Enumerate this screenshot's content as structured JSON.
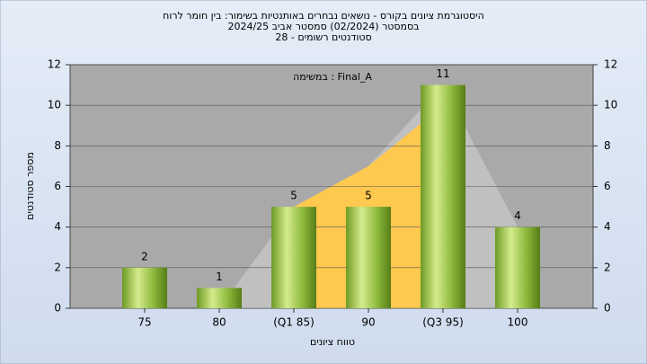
{
  "chart_data": {
    "type": "bar",
    "title": "היסטוגרמת ציונים בקורס - נושאים נבחרים באותנטיות בשימור: בין חומר לרוח",
    "subtitle": "בסמסטר  (02/2024)  סמסטר אביב 2024/25",
    "subtitle2": "סטודנטים רשומים - 28",
    "annotation": "במשימה : Final_A",
    "x_label": "טווח ציונים",
    "y_label": "מספר סטודנטים",
    "categories": [
      "75",
      "80",
      "(Q1 85)",
      "90",
      "(Q3 95)",
      "100"
    ],
    "values": [
      2,
      1,
      5,
      5,
      11,
      4
    ],
    "color": "#8cb83c",
    "areas": [
      {
        "color": "#c0c0c0",
        "values": [
          null,
          0,
          5,
          7,
          11,
          4
        ]
      },
      {
        "color": "#ffc84f",
        "values": [
          null,
          null,
          5,
          7,
          10,
          null
        ]
      }
    ],
    "ylim": [
      0,
      12
    ],
    "yticks": [
      0,
      2,
      4,
      6,
      8,
      10,
      12
    ],
    "y2lim": [
      0,
      12
    ],
    "y2ticks": [
      0,
      2,
      4,
      6,
      8,
      10,
      12
    ],
    "grid": true
  }
}
